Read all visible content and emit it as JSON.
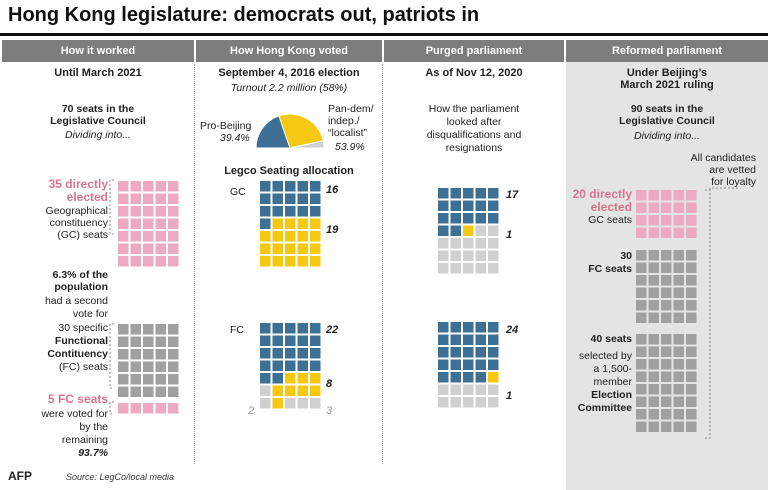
{
  "title": "Hong Kong legislature: democrats out, patriots in",
  "colors": {
    "header": "#7d7d7d",
    "pro_beijing": "#3e6f94",
    "pan_dem": "#f6c812",
    "vacant": "#d0d0d0",
    "gc_seat": "#eda9c1",
    "fc_seat": "#a0a0a0",
    "reformed_bg": "#e4e4e4"
  },
  "columns": [
    {
      "header": "How it worked",
      "subheader": "Until March 2021"
    },
    {
      "header": "How Hong Kong voted",
      "subheader": "September 4, 2016 election"
    },
    {
      "header": "Purged parliament",
      "subheader": "As of Nov 12, 2020"
    },
    {
      "header": "Reformed parliament",
      "subheader_1": "Under Beijing’s",
      "subheader_2": "March 2021 ruling"
    }
  ],
  "col1": {
    "seats_1": "70 seats in the",
    "seats_2": "Legislative Council",
    "dividing": "Dividing into...",
    "gc_title_1": "35 directly",
    "gc_title_2": "elected",
    "gc_desc_1": "Geographical",
    "gc_desc_2": "constituency",
    "gc_desc_3": "(GC) seats",
    "pop_1": "6.3% of the",
    "pop_2": "population",
    "vote_1": "had a second",
    "vote_2": "vote for",
    "vote_3": "30 specific",
    "fc_bold_1": "Functional",
    "fc_bold_2": "Contituency",
    "fc_tail": "(FC) seats",
    "fc5_title": "5 FC seats",
    "rem_1": "were voted for",
    "rem_2": "by the",
    "rem_3": "remaining",
    "rem_4": "93.7%"
  },
  "col2": {
    "turnout": "Turnout 2.2 million (58%)",
    "pro_label": "Pro-Beijing",
    "pro_pct": "39.4%",
    "pan_label_1": "Pan-dem/",
    "pan_label_2": "indep./",
    "pan_label_3": "“localist”",
    "pan_pct": "53.9%",
    "alloc_title": "Legco Seating allocation",
    "gc_label": "GC",
    "gc_pro": "16",
    "gc_pan": "19",
    "fc_label": "FC",
    "fc_pro": "22",
    "fc_pan": "8",
    "fc_other_left": "2",
    "fc_other_right": "3"
  },
  "col3": {
    "desc_1": "How the parliament",
    "desc_2": "looked after",
    "desc_3": "disqualifications and",
    "desc_4": "resignations",
    "gc_pro": "17",
    "gc_pan": "1",
    "fc_pro": "24",
    "fc_pan": "1"
  },
  "col4": {
    "seats_1": "90 seats in the",
    "seats_2": "Legislative Council",
    "dividing": "Dividing into...",
    "vetted_1": "All candidates",
    "vetted_2": "are vetted",
    "vetted_3": "for loyalty",
    "gc_title_1": "20 directly",
    "gc_title_2": "elected",
    "gc_desc": "GC seats",
    "fc_num": "30",
    "fc_desc": "FC seats",
    "ec_num": "40 seats",
    "ec_1": "selected by",
    "ec_2": "a 1,500-",
    "ec_3": "member",
    "ec_4": "Election",
    "ec_5": "Committee"
  },
  "footer": {
    "logo": "AFP",
    "source": "Source: LegCo/local media"
  },
  "seat_grids": [
    {
      "name": "col1-gc-grid",
      "col": 0,
      "cols": 5,
      "counts": {
        "gc": 35
      }
    },
    {
      "name": "col1-fc-grid",
      "col": 0,
      "cols": 5,
      "counts": {
        "fc": 30
      }
    },
    {
      "name": "col1-fc5-grid",
      "col": 0,
      "cols": 5,
      "counts": {
        "gc": 5
      }
    },
    {
      "name": "col2-gc-grid",
      "col": 1,
      "cols": 5,
      "counts": {
        "pro": 16,
        "pan": 19
      }
    },
    {
      "name": "col2-fc-grid",
      "col": 1,
      "cols": 5,
      "counts": {
        "pro": 22,
        "pan": 8,
        "other": 5
      }
    },
    {
      "name": "col3-gc-grid",
      "col": 2,
      "cols": 5,
      "counts": {
        "pro": 17,
        "pan": 1,
        "vacant": 17
      }
    },
    {
      "name": "col3-fc-grid",
      "col": 2,
      "cols": 5,
      "counts": {
        "pro": 24,
        "pan": 1,
        "vacant": 10
      }
    },
    {
      "name": "col4-gc-grid",
      "col": 3,
      "cols": 5,
      "counts": {
        "gc": 20
      }
    },
    {
      "name": "col4-fc-grid",
      "col": 3,
      "cols": 5,
      "counts": {
        "fc": 30
      }
    },
    {
      "name": "col4-ec-grid",
      "col": 3,
      "cols": 5,
      "counts": {
        "fc": 40
      }
    }
  ]
}
